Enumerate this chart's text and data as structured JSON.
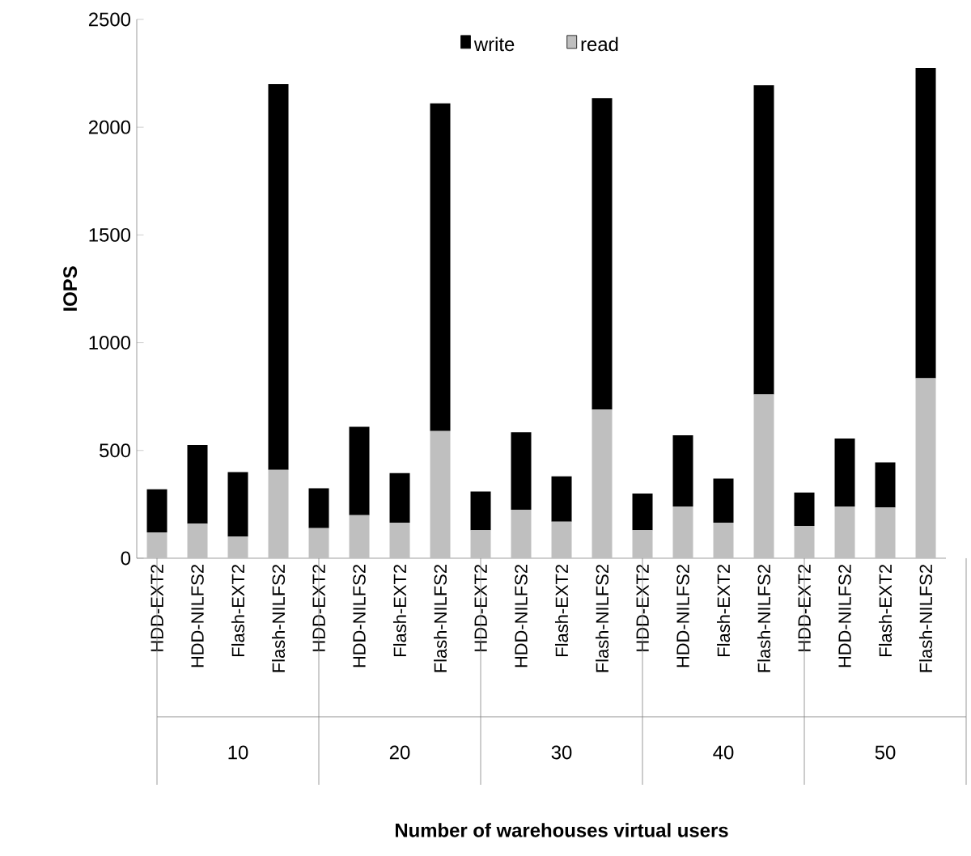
{
  "chart_data": {
    "type": "bar",
    "stacked": true,
    "categories": [
      "HDD-EXT2",
      "HDD-NILFS2",
      "Flash-EXT2",
      "Flash-NILFS2",
      "HDD-EXT2",
      "HDD-NILFS2",
      "Flash-EXT2",
      "Flash-NILFS2",
      "HDD-EXT2",
      "HDD-NILFS2",
      "Flash-EXT2",
      "Flash-NILFS2",
      "HDD-EXT2",
      "HDD-NILFS2",
      "Flash-EXT2",
      "Flash-NILFS2",
      "HDD-EXT2",
      "HDD-NILFS2",
      "Flash-EXT2",
      "Flash-NILFS2"
    ],
    "series": [
      {
        "name": "read",
        "color": "#bfbfbf",
        "values": [
          120,
          160,
          100,
          410,
          140,
          200,
          165,
          590,
          130,
          225,
          170,
          690,
          130,
          240,
          165,
          760,
          150,
          240,
          235,
          835
        ]
      },
      {
        "name": "write",
        "color": "#000000",
        "values": [
          200,
          365,
          300,
          1790,
          185,
          410,
          230,
          1520,
          180,
          360,
          210,
          1445,
          170,
          330,
          205,
          1435,
          155,
          315,
          210,
          1440
        ]
      }
    ],
    "ylabel": "IOPS",
    "ylim": [
      0,
      2500
    ],
    "yticks": [
      0,
      500,
      1000,
      1500,
      2000,
      2500
    ],
    "annotations": [
      "10",
      "20",
      "30",
      "40",
      "50",
      "Number of warehouses virtual users"
    ],
    "legend": "top"
  }
}
